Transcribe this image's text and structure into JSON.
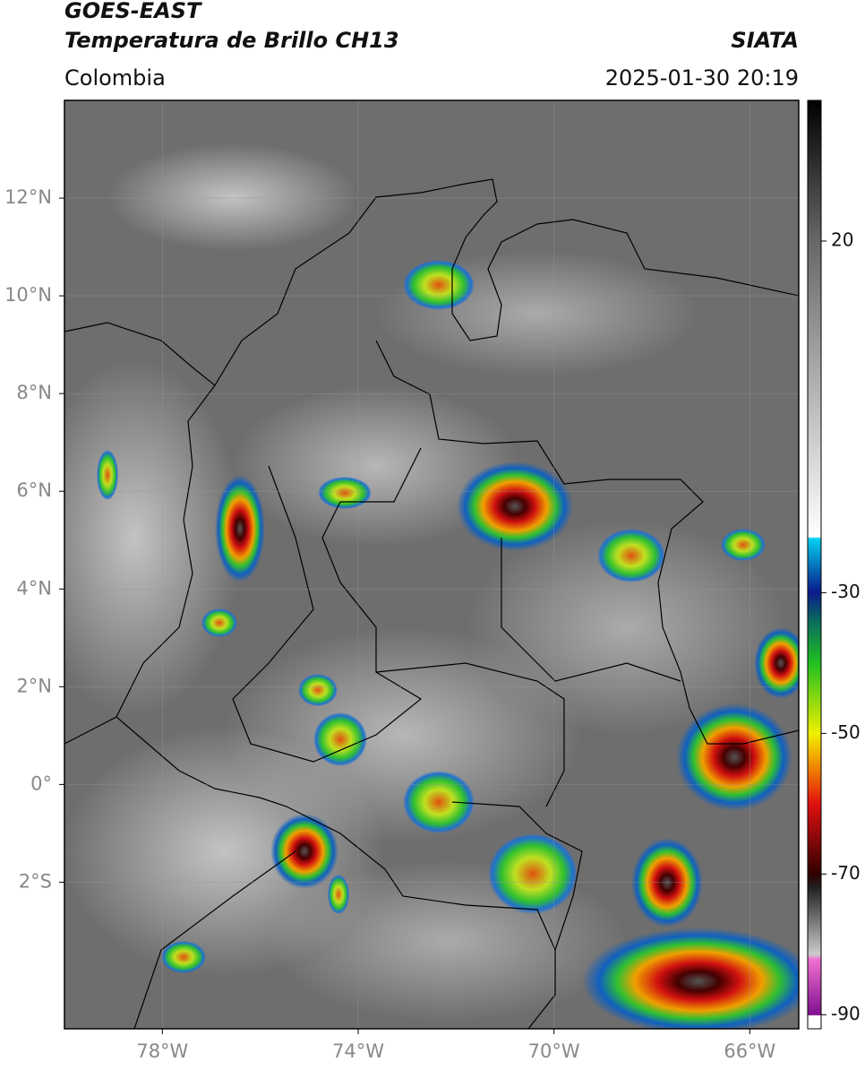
{
  "header": {
    "title": "GOES-EAST",
    "subtitle": "Temperatura de Brillo CH13",
    "region": "Colombia",
    "source": "SIATA",
    "timestamp": "2025-01-30 20:19"
  },
  "map": {
    "xlim": [
      -80,
      -65
    ],
    "ylim": [
      -5,
      14
    ],
    "grid": true,
    "xticks": [
      {
        "value": -78,
        "label": "78°W"
      },
      {
        "value": -74,
        "label": "74°W"
      },
      {
        "value": -70,
        "label": "70°W"
      },
      {
        "value": -66,
        "label": "66°W"
      }
    ],
    "yticks": [
      {
        "value": 12,
        "label": "12°N"
      },
      {
        "value": 10,
        "label": "10°N"
      },
      {
        "value": 8,
        "label": "8°N"
      },
      {
        "value": 6,
        "label": "6°N"
      },
      {
        "value": 4,
        "label": "4°N"
      },
      {
        "value": 2,
        "label": "2°N"
      },
      {
        "value": 0,
        "label": "0°"
      },
      {
        "value": -2,
        "label": "2°S"
      }
    ]
  },
  "colorbar": {
    "lim": [
      -92,
      40
    ],
    "ticks": [
      20,
      -30,
      -50,
      -70,
      -90
    ]
  }
}
